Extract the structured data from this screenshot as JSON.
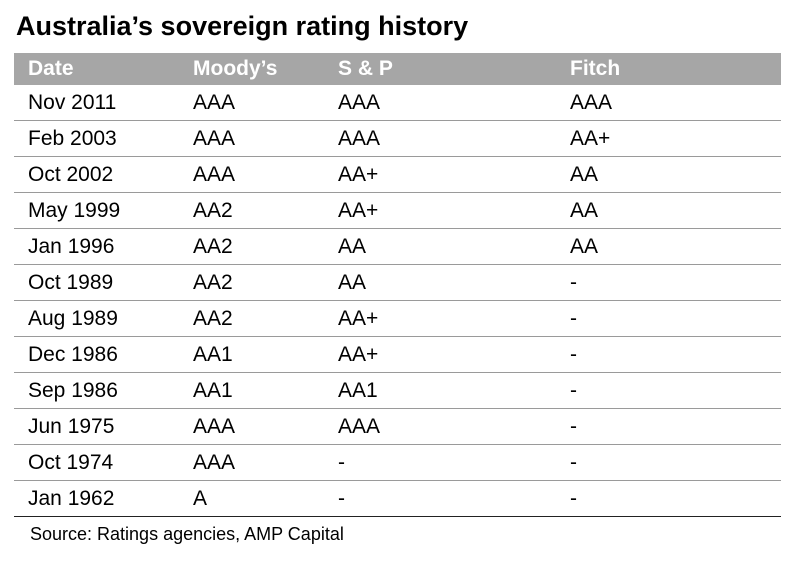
{
  "title": "Australia’s sovereign rating history",
  "source": "Source: Ratings agencies, AMP Capital",
  "chart_data": {
    "type": "table",
    "title": "Australia’s sovereign rating history",
    "columns": [
      "Date",
      "Moody’s",
      "S & P",
      "Fitch"
    ],
    "rows": [
      [
        "Nov 2011",
        "AAA",
        "AAA",
        "AAA"
      ],
      [
        "Feb 2003",
        "AAA",
        "AAA",
        "AA+"
      ],
      [
        "Oct 2002",
        "AAA",
        "AA+",
        "AA"
      ],
      [
        "May 1999",
        "AA2",
        "AA+",
        "AA"
      ],
      [
        "Jan 1996",
        "AA2",
        "AA",
        "AA"
      ],
      [
        "Oct 1989",
        "AA2",
        "AA",
        "-"
      ],
      [
        "Aug 1989",
        "AA2",
        "AA+",
        "-"
      ],
      [
        "Dec 1986",
        "AA1",
        "AA+",
        "-"
      ],
      [
        "Sep 1986",
        "AA1",
        "AA1",
        "-"
      ],
      [
        "Jun 1975",
        "AAA",
        "AAA",
        "-"
      ],
      [
        "Oct 1974",
        "AAA",
        "-",
        "-"
      ],
      [
        "Jan 1962",
        "A",
        "-",
        "-"
      ]
    ],
    "colors": {
      "header_bg": "#a6a6a6",
      "header_text": "#ffffff"
    }
  }
}
